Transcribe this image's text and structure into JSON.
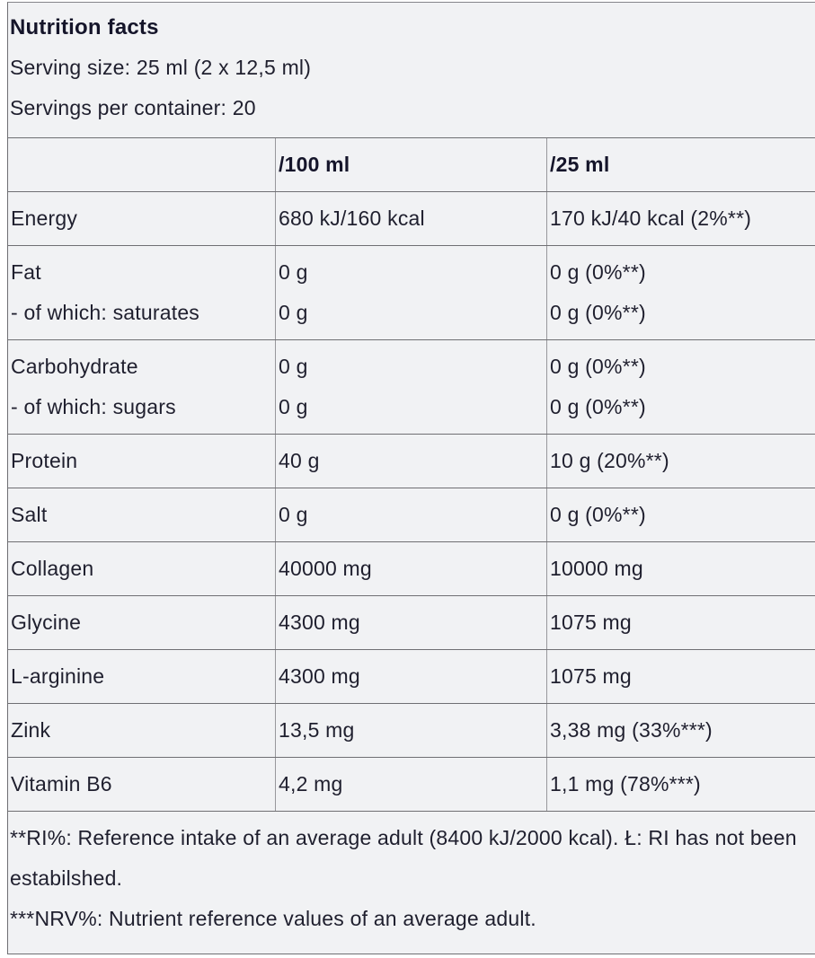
{
  "table": {
    "title": "Nutrition facts",
    "serving_size": "Serving size: 25 ml (2 x 12,5 ml)",
    "servings_per_container": "Servings per container: 20",
    "columns": [
      "",
      "/100 ml",
      "/25 ml"
    ],
    "rows": [
      {
        "labels": [
          "Energy"
        ],
        "per100": [
          "680 kJ/160 kcal"
        ],
        "per25": [
          "170 kJ/40 kcal (2%**)"
        ]
      },
      {
        "labels": [
          "Fat",
          "- of which: saturates"
        ],
        "per100": [
          "0 g",
          "0 g"
        ],
        "per25": [
          "0 g (0%**)",
          "0 g (0%**)"
        ]
      },
      {
        "labels": [
          "Carbohydrate",
          "- of which: sugars"
        ],
        "per100": [
          "0 g",
          "0 g"
        ],
        "per25": [
          "0 g (0%**)",
          "0 g (0%**)"
        ]
      },
      {
        "labels": [
          "Protein"
        ],
        "per100": [
          "40 g"
        ],
        "per25": [
          "10 g (20%**)"
        ]
      },
      {
        "labels": [
          "Salt"
        ],
        "per100": [
          "0 g"
        ],
        "per25": [
          "0 g (0%**)"
        ]
      },
      {
        "labels": [
          "Collagen"
        ],
        "per100": [
          "40000 mg"
        ],
        "per25": [
          "10000 mg"
        ]
      },
      {
        "labels": [
          "Glycine"
        ],
        "per100": [
          "4300 mg"
        ],
        "per25": [
          "1075 mg"
        ]
      },
      {
        "labels": [
          "L-arginine"
        ],
        "per100": [
          "4300 mg"
        ],
        "per25": [
          "1075 mg"
        ]
      },
      {
        "labels": [
          "Zink"
        ],
        "per100": [
          "13,5 mg"
        ],
        "per25": [
          "3,38 mg (33%***)"
        ]
      },
      {
        "labels": [
          "Vitamin B6"
        ],
        "per100": [
          "4,2 mg"
        ],
        "per25": [
          "1,1 mg (78%***)"
        ]
      }
    ],
    "footnotes": [
      "**RI%: Reference intake of an average adult (8400 kJ/2000 kcal). Ł: RI has not been estabilshed.",
      "***NRV%: Nutrient reference values of an average adult."
    ],
    "colors": {
      "background": "#f1f2f4",
      "text": "#1f1f2e",
      "row_border": "#6f6f73",
      "column_border": "#98989c"
    }
  }
}
